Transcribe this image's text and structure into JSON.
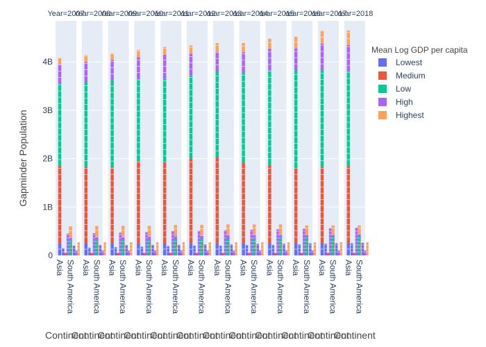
{
  "chart_data": {
    "type": "bar",
    "barmode": "stack",
    "facet_by": "Year",
    "panels": [
      {
        "title": "Year=2007"
      },
      {
        "title": "Year=2008"
      },
      {
        "title": "Year=2009"
      },
      {
        "title": "Year=2010"
      },
      {
        "title": "Year=2011"
      },
      {
        "title": "Year=2012"
      },
      {
        "title": "Year=2013"
      },
      {
        "title": "Year=2014"
      },
      {
        "title": "Year=2015"
      },
      {
        "title": "Year=2016"
      },
      {
        "title": "Year=2017"
      },
      {
        "title": "Year=2018"
      }
    ],
    "categories": [
      "Asia",
      "South America"
    ],
    "xlabel": "Continent",
    "ylabel": "Gapminder Population",
    "yticks": [
      {
        "value": 0,
        "label": "0"
      },
      {
        "value": 1000000000,
        "label": "1B"
      },
      {
        "value": 2000000000,
        "label": "2B"
      },
      {
        "value": 3000000000,
        "label": "3B"
      },
      {
        "value": 4000000000,
        "label": "4B"
      }
    ],
    "ylim": [
      0,
      4850000000
    ],
    "legend": {
      "title": "Mean Log GDP per capita",
      "placement": "right",
      "entries": [
        {
          "name": "Lowest",
          "color": "#636efa"
        },
        {
          "name": "Medium",
          "color": "#ef553b"
        },
        {
          "name": "Low",
          "color": "#00cc96"
        },
        {
          "name": "High",
          "color": "#ab63fa"
        },
        {
          "name": "Highest",
          "color": "#ffa15a"
        }
      ]
    },
    "series": [
      {
        "name": "Lowest",
        "values_by_year": {
          "Asia": [
            0.25,
            0.25,
            0.25,
            0.25,
            0.25,
            0.25,
            0.25,
            0.25,
            0.25,
            0.25,
            0.25,
            0.25
          ],
          "South America": [
            0.02,
            0.02,
            0.02,
            0.02,
            0.02,
            0.02,
            0.02,
            0.02,
            0.02,
            0.02,
            0.02,
            0.02
          ]
        }
      },
      {
        "name": "Medium",
        "values_by_year": {
          "Asia": [
            1.6,
            1.58,
            1.57,
            1.7,
            1.68,
            1.75,
            1.78,
            1.67,
            1.62,
            1.55,
            1.58,
            1.6
          ],
          "South America": [
            0.22,
            0.23,
            0.23,
            0.24,
            0.25,
            0.26,
            0.27,
            0.28,
            0.28,
            0.28,
            0.28,
            0.29
          ]
        }
      },
      {
        "name": "Low",
        "values_by_year": {
          "Asia": [
            1.7,
            1.75,
            1.8,
            1.7,
            1.72,
            1.72,
            1.78,
            1.86,
            1.95,
            2.03,
            2.0,
            1.95
          ],
          "South America": [
            0.0,
            0.0,
            0.0,
            0.0,
            0.0,
            0.0,
            0.0,
            0.0,
            0.0,
            0.0,
            0.0,
            0.0
          ]
        }
      },
      {
        "name": "High",
        "values_by_year": {
          "Asia": [
            0.4,
            0.42,
            0.42,
            0.45,
            0.5,
            0.45,
            0.4,
            0.42,
            0.45,
            0.45,
            0.55,
            0.55
          ],
          "South America": [
            0.14,
            0.14,
            0.14,
            0.14,
            0.15,
            0.14,
            0.14,
            0.14,
            0.14,
            0.13,
            0.13,
            0.13
          ]
        }
      },
      {
        "name": "Highest",
        "values_by_year": {
          "Asia": [
            0.14,
            0.14,
            0.14,
            0.15,
            0.16,
            0.17,
            0.18,
            0.19,
            0.21,
            0.24,
            0.27,
            0.3
          ],
          "South America": [
            0.22,
            0.22,
            0.22,
            0.21,
            0.21,
            0.21,
            0.21,
            0.2,
            0.2,
            0.19,
            0.19,
            0.18
          ]
        }
      }
    ],
    "secondary_bars": {
      "Asia": [
        {
          "name": "Lowest",
          "values": [
            0.15,
            0.16,
            0.17,
            0.18,
            0.19,
            0.2,
            0.2,
            0.21,
            0.22,
            0.23,
            0.24,
            0.25
          ]
        },
        {
          "name": "Medium",
          "values": [
            0.05,
            0.05,
            0.05,
            0.05,
            0.05,
            0.05,
            0.05,
            0.05,
            0.05,
            0.05,
            0.05,
            0.05
          ]
        },
        {
          "name": "High",
          "values": [
            0.45,
            0.46,
            0.47,
            0.48,
            0.5,
            0.51,
            0.52,
            0.53,
            0.54,
            0.55,
            0.56,
            0.57
          ]
        },
        {
          "name": "Low",
          "values": [
            0.32,
            0.32,
            0.32,
            0.33,
            0.34,
            0.35,
            0.35,
            0.36,
            0.37,
            0.38,
            0.39,
            0.4
          ]
        }
      ],
      "South America": [
        {
          "name": "Lowest",
          "values": [
            0.2,
            0.21,
            0.21,
            0.22,
            0.22,
            0.23,
            0.23,
            0.24,
            0.24,
            0.25,
            0.25,
            0.26
          ]
        },
        {
          "name": "High",
          "values": [
            0.1,
            0.1,
            0.1,
            0.1,
            0.1,
            0.1,
            0.1,
            0.1,
            0.1,
            0.1,
            0.1,
            0.1
          ]
        },
        {
          "name": "Highest",
          "values": [
            0.27,
            0.27,
            0.27,
            0.27,
            0.27,
            0.27,
            0.27,
            0.27,
            0.27,
            0.27,
            0.27,
            0.27
          ]
        }
      ]
    },
    "bar_units": "billions",
    "grid": true,
    "plot_background": "#e5ecf6"
  }
}
